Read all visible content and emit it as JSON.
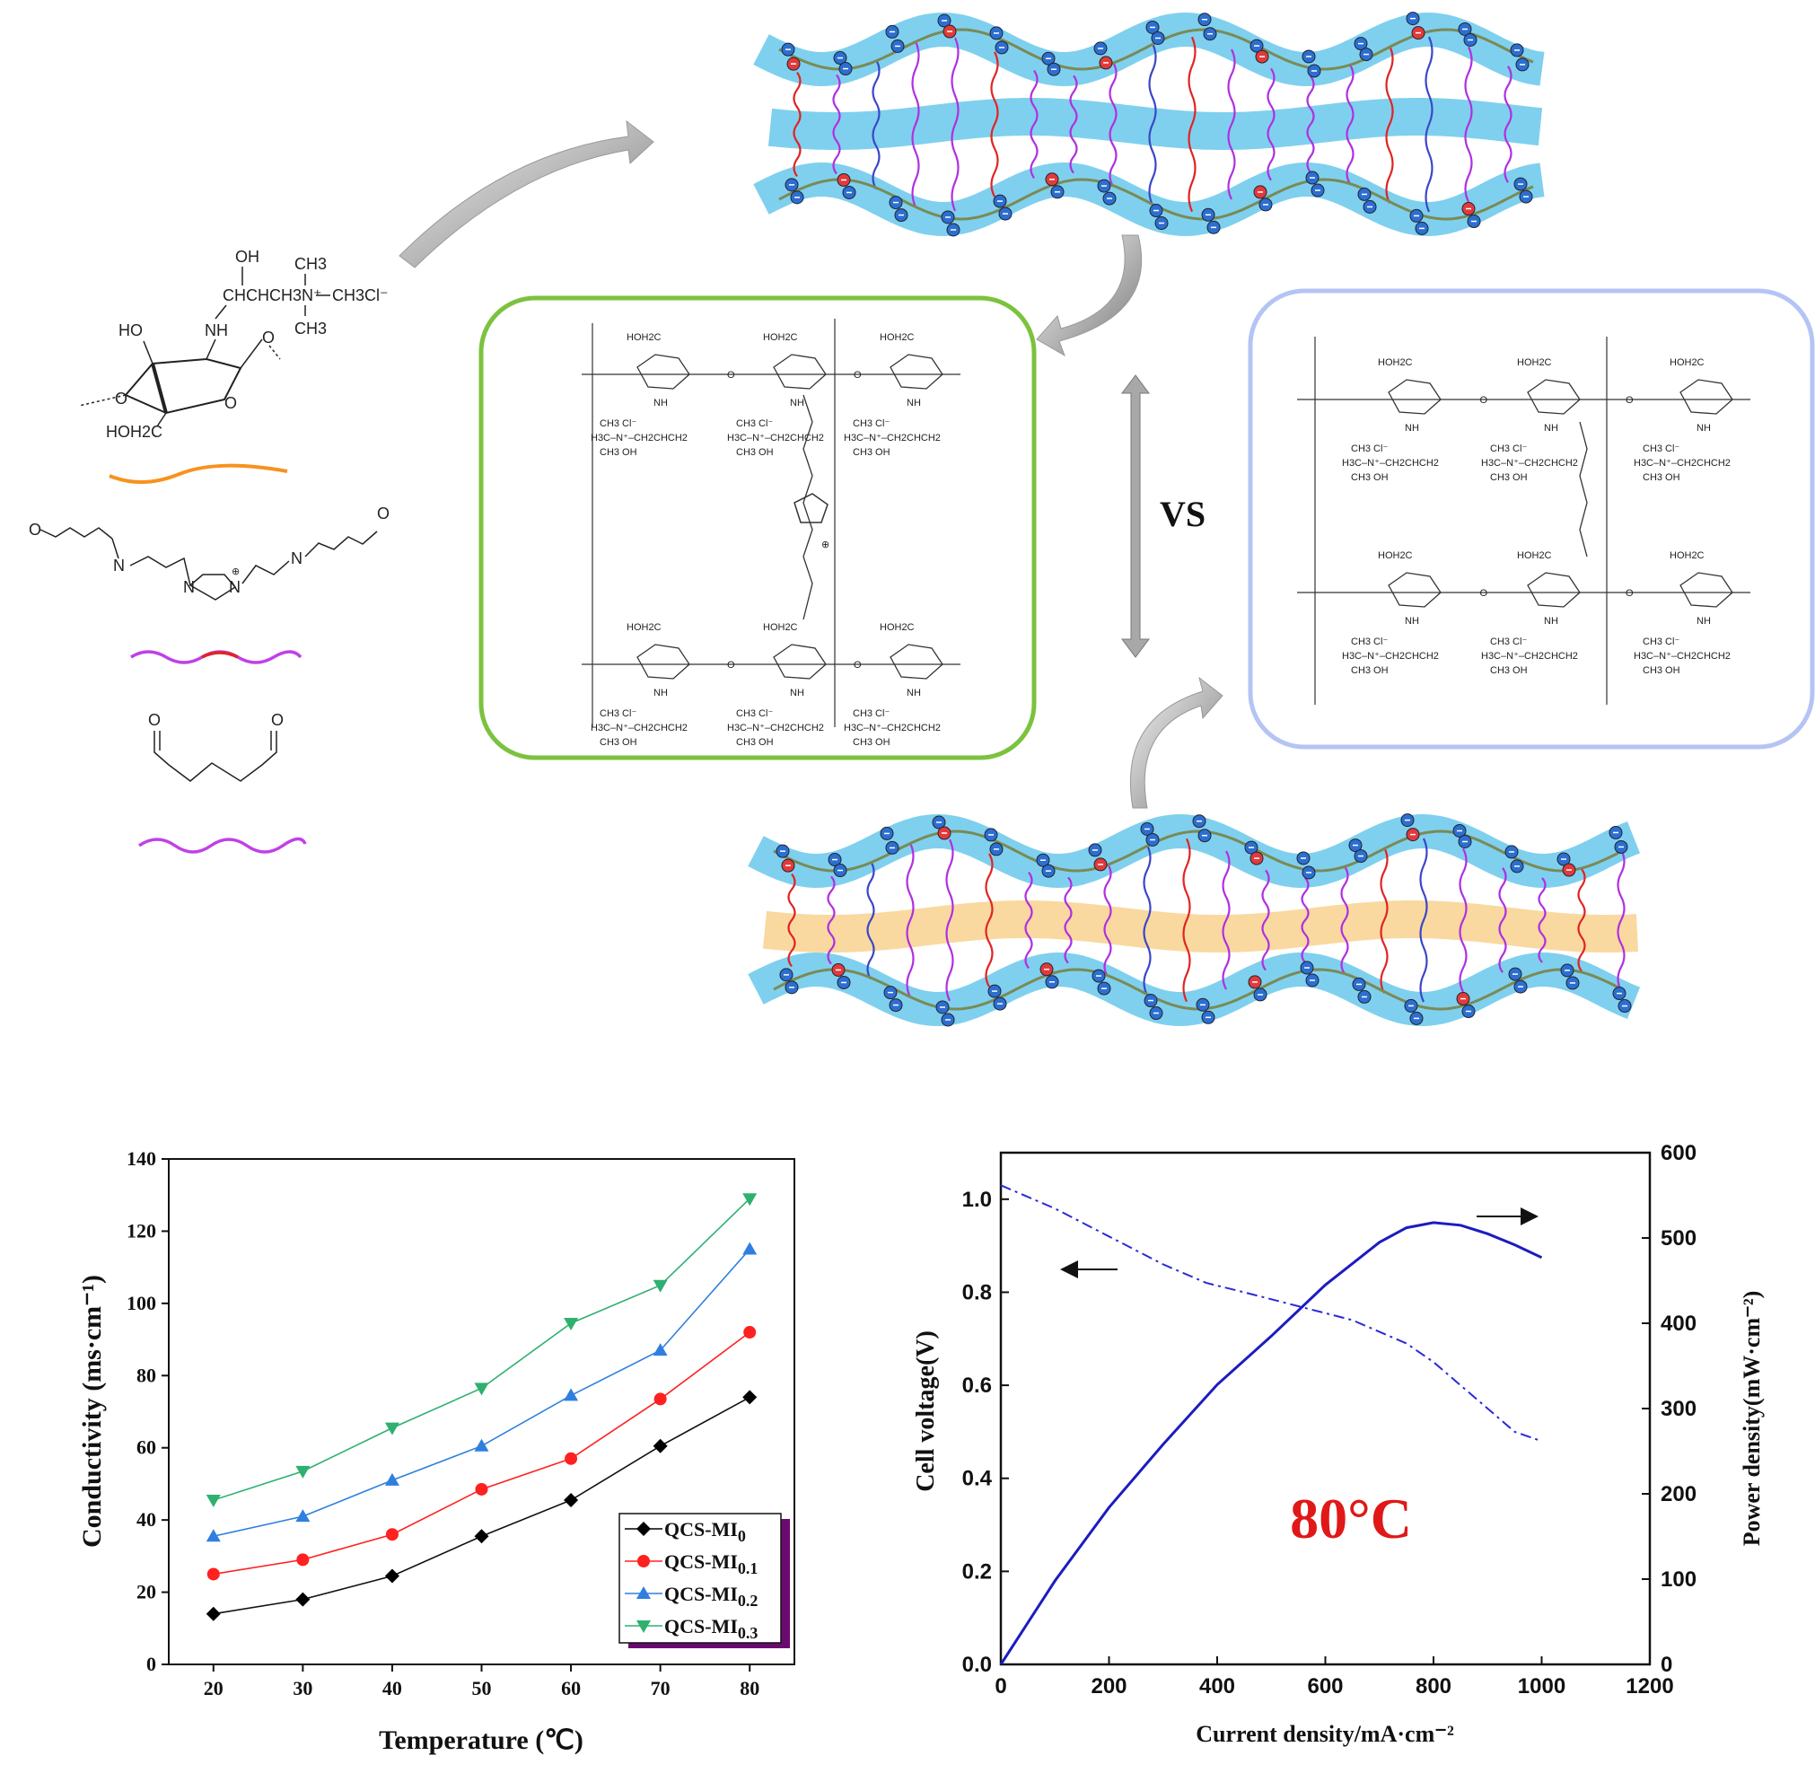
{
  "colors": {
    "membrane_blue": "#7fd0ee",
    "membrane_yellow": "#f9d9a0",
    "backbone": "#7a8a55",
    "crosslink_purple": "#b030e0",
    "crosslink_red": "#e02424",
    "crosslink_blue": "#3c46c8",
    "green_box": "#7cc23e",
    "blue_box": "#b4c4f4",
    "label_80c": "#e01818"
  },
  "chemistry": {
    "qcs_oh": "OH",
    "qcs_ch3_top": "CH3",
    "qcs_chain": "CHCHCH3N⁺",
    "qcs_tail": "CH3Cl⁻",
    "qcs_ch3_bottom": "CH3",
    "qcs_nh": "NH",
    "qcs_ho": "HO",
    "qcs_hoh2c": "HOH2C",
    "mi_o_left": "O",
    "mi_o_right": "O",
    "mi_n_left": "N",
    "mi_n_right": "N",
    "mi_ring_n1": "N",
    "mi_ring_n2": "N",
    "mi_charge": "⊕",
    "ga_o_left": "O",
    "ga_o_right": "O"
  },
  "vs_label": "VS",
  "green_box_labels": [
    "HOH2C",
    "HOH2C",
    "HOH2C",
    "HOH2C",
    "HOH2C",
    "HOH2C"
  ],
  "blue_box_labels": [
    "HOH2C",
    "HOH2C",
    "HOH2C",
    "HOH2C",
    "HOH2C",
    "HOH2C"
  ],
  "chart_data": [
    {
      "type": "line",
      "title": "",
      "xlabel": "Temperature (℃)",
      "ylabel": "Conductivity (ms·cm⁻¹)",
      "xlim": [
        15,
        85
      ],
      "ylim": [
        0,
        140
      ],
      "x": [
        20,
        30,
        40,
        50,
        60,
        70,
        80
      ],
      "xticks": [
        "20",
        "30",
        "40",
        "50",
        "60",
        "70",
        "80"
      ],
      "yticks": [
        "0",
        "20",
        "40",
        "60",
        "80",
        "100",
        "120",
        "140"
      ],
      "legend_position": "bottom-right",
      "series": [
        {
          "name": "QCS-MI0",
          "label": "QCS-MI",
          "sub": "0",
          "color": "#000000",
          "marker": "diamond",
          "values": [
            14,
            18,
            24.5,
            35.5,
            45.5,
            60.5,
            74
          ]
        },
        {
          "name": "QCS-MI0.1",
          "label": "QCS-MI",
          "sub": "0.1",
          "color": "#ff2020",
          "marker": "circle",
          "values": [
            25,
            29,
            36,
            48.5,
            57,
            73.5,
            92
          ]
        },
        {
          "name": "QCS-MI0.2",
          "label": "QCS-MI",
          "sub": "0.2",
          "color": "#2f7fe0",
          "marker": "triangle-up",
          "values": [
            35.5,
            41,
            51,
            60.5,
            74.5,
            87,
            115
          ]
        },
        {
          "name": "QCS-MI0.3",
          "label": "QCS-MI",
          "sub": "0.3",
          "color": "#2fb070",
          "marker": "triangle-down",
          "values": [
            45.5,
            53.5,
            65.5,
            76.5,
            94.5,
            105,
            129
          ]
        }
      ]
    },
    {
      "type": "line",
      "title": "",
      "xlabel": "Current density/mA·cm⁻²",
      "ylabel": "Cell voltage(V)",
      "ylabel_right": "Power density(mW·cm⁻²)",
      "xlim": [
        0,
        1200
      ],
      "ylim": [
        0,
        1.1
      ],
      "ylim_right": [
        0,
        600
      ],
      "xticks": [
        "0",
        "200",
        "400",
        "600",
        "800",
        "1000",
        "1200"
      ],
      "yticks": [
        "0.0",
        "0.2",
        "0.4",
        "0.6",
        "0.8",
        "1.0"
      ],
      "yticks_right": [
        "0",
        "100",
        "200",
        "300",
        "400",
        "500",
        "600"
      ],
      "annotation": "80°C",
      "series": [
        {
          "name": "",
          "axis": "left",
          "style": "dash-dot",
          "color": "#2a2ad8",
          "x": [
            0,
            100,
            200,
            300,
            380,
            450,
            550,
            650,
            750,
            800,
            850,
            900,
            950,
            1000
          ],
          "values": [
            1.03,
            0.98,
            0.92,
            0.86,
            0.82,
            0.8,
            0.77,
            0.74,
            0.69,
            0.65,
            0.6,
            0.55,
            0.5,
            0.48
          ]
        },
        {
          "name": "",
          "axis": "right",
          "style": "solid",
          "color": "#1c1cc0",
          "x": [
            0,
            100,
            200,
            300,
            400,
            500,
            600,
            700,
            750,
            800,
            850,
            900,
            950,
            1000
          ],
          "values": [
            0,
            98,
            184,
            258,
            328,
            385,
            445,
            495,
            512,
            518,
            515,
            505,
            492,
            477
          ]
        }
      ]
    }
  ]
}
